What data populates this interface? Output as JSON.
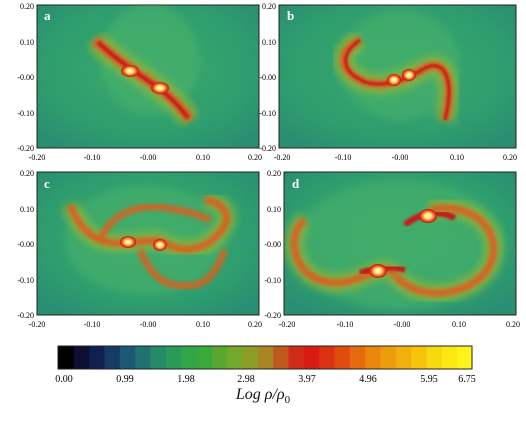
{
  "panels": [
    {
      "label": "a",
      "x_ticks": [
        "-0.20",
        "-0.10",
        "-0.00",
        "0.10",
        "0.20"
      ],
      "y_ticks": [
        "0.20",
        "0.10",
        "-0.00",
        "-0.10",
        "-0.20"
      ]
    },
    {
      "label": "b",
      "x_ticks": [
        "-0.20",
        "-0.10",
        "-0.00",
        "0.10",
        "0.20"
      ],
      "y_ticks": [
        "0.20",
        "0.10",
        "-0.00",
        "-0.10",
        "-0.20"
      ]
    },
    {
      "label": "c",
      "x_ticks": [
        "-0.20",
        "-0.10",
        "-0.00",
        "0.10",
        "0.20"
      ],
      "y_ticks": [
        "0.20",
        "0.10",
        "-0.00",
        "-0.10",
        "-0.20"
      ]
    },
    {
      "label": "d",
      "x_ticks": [
        "-0.20",
        "-0.10",
        "-0.00",
        "0.10",
        "0.20"
      ],
      "y_ticks": [
        "0.20",
        "0.10",
        "-0.00",
        "-0.10",
        "-0.20"
      ]
    }
  ],
  "colorbar": {
    "ticks": [
      "0.00",
      "0.99",
      "1.98",
      "2.98",
      "3.97",
      "4.96",
      "5.95",
      "6.75"
    ],
    "label": "Log ρ/ρ",
    "label_subscript": "0",
    "colors": [
      "#000000",
      "#0b0f33",
      "#102050",
      "#163a66",
      "#1a5a72",
      "#1f7270",
      "#238a6a",
      "#2a9a58",
      "#2fa648",
      "#3aa83a",
      "#56a830",
      "#74a82a",
      "#8c9e26",
      "#a88422",
      "#c05a1c",
      "#d02a18",
      "#d81c14",
      "#dc3012",
      "#e04c10",
      "#e66a0e",
      "#ea860c",
      "#ee9c0c",
      "#f2b00c",
      "#f6c40c",
      "#f8d80e",
      "#fbe812",
      "#fff41a"
    ]
  },
  "colors": {
    "background_field": "#2f9e6e",
    "arm_outer": "#b8b02a",
    "arm_mid": "#d8461a",
    "arm_core": "#c4141a",
    "clump": "#fff6c8"
  }
}
